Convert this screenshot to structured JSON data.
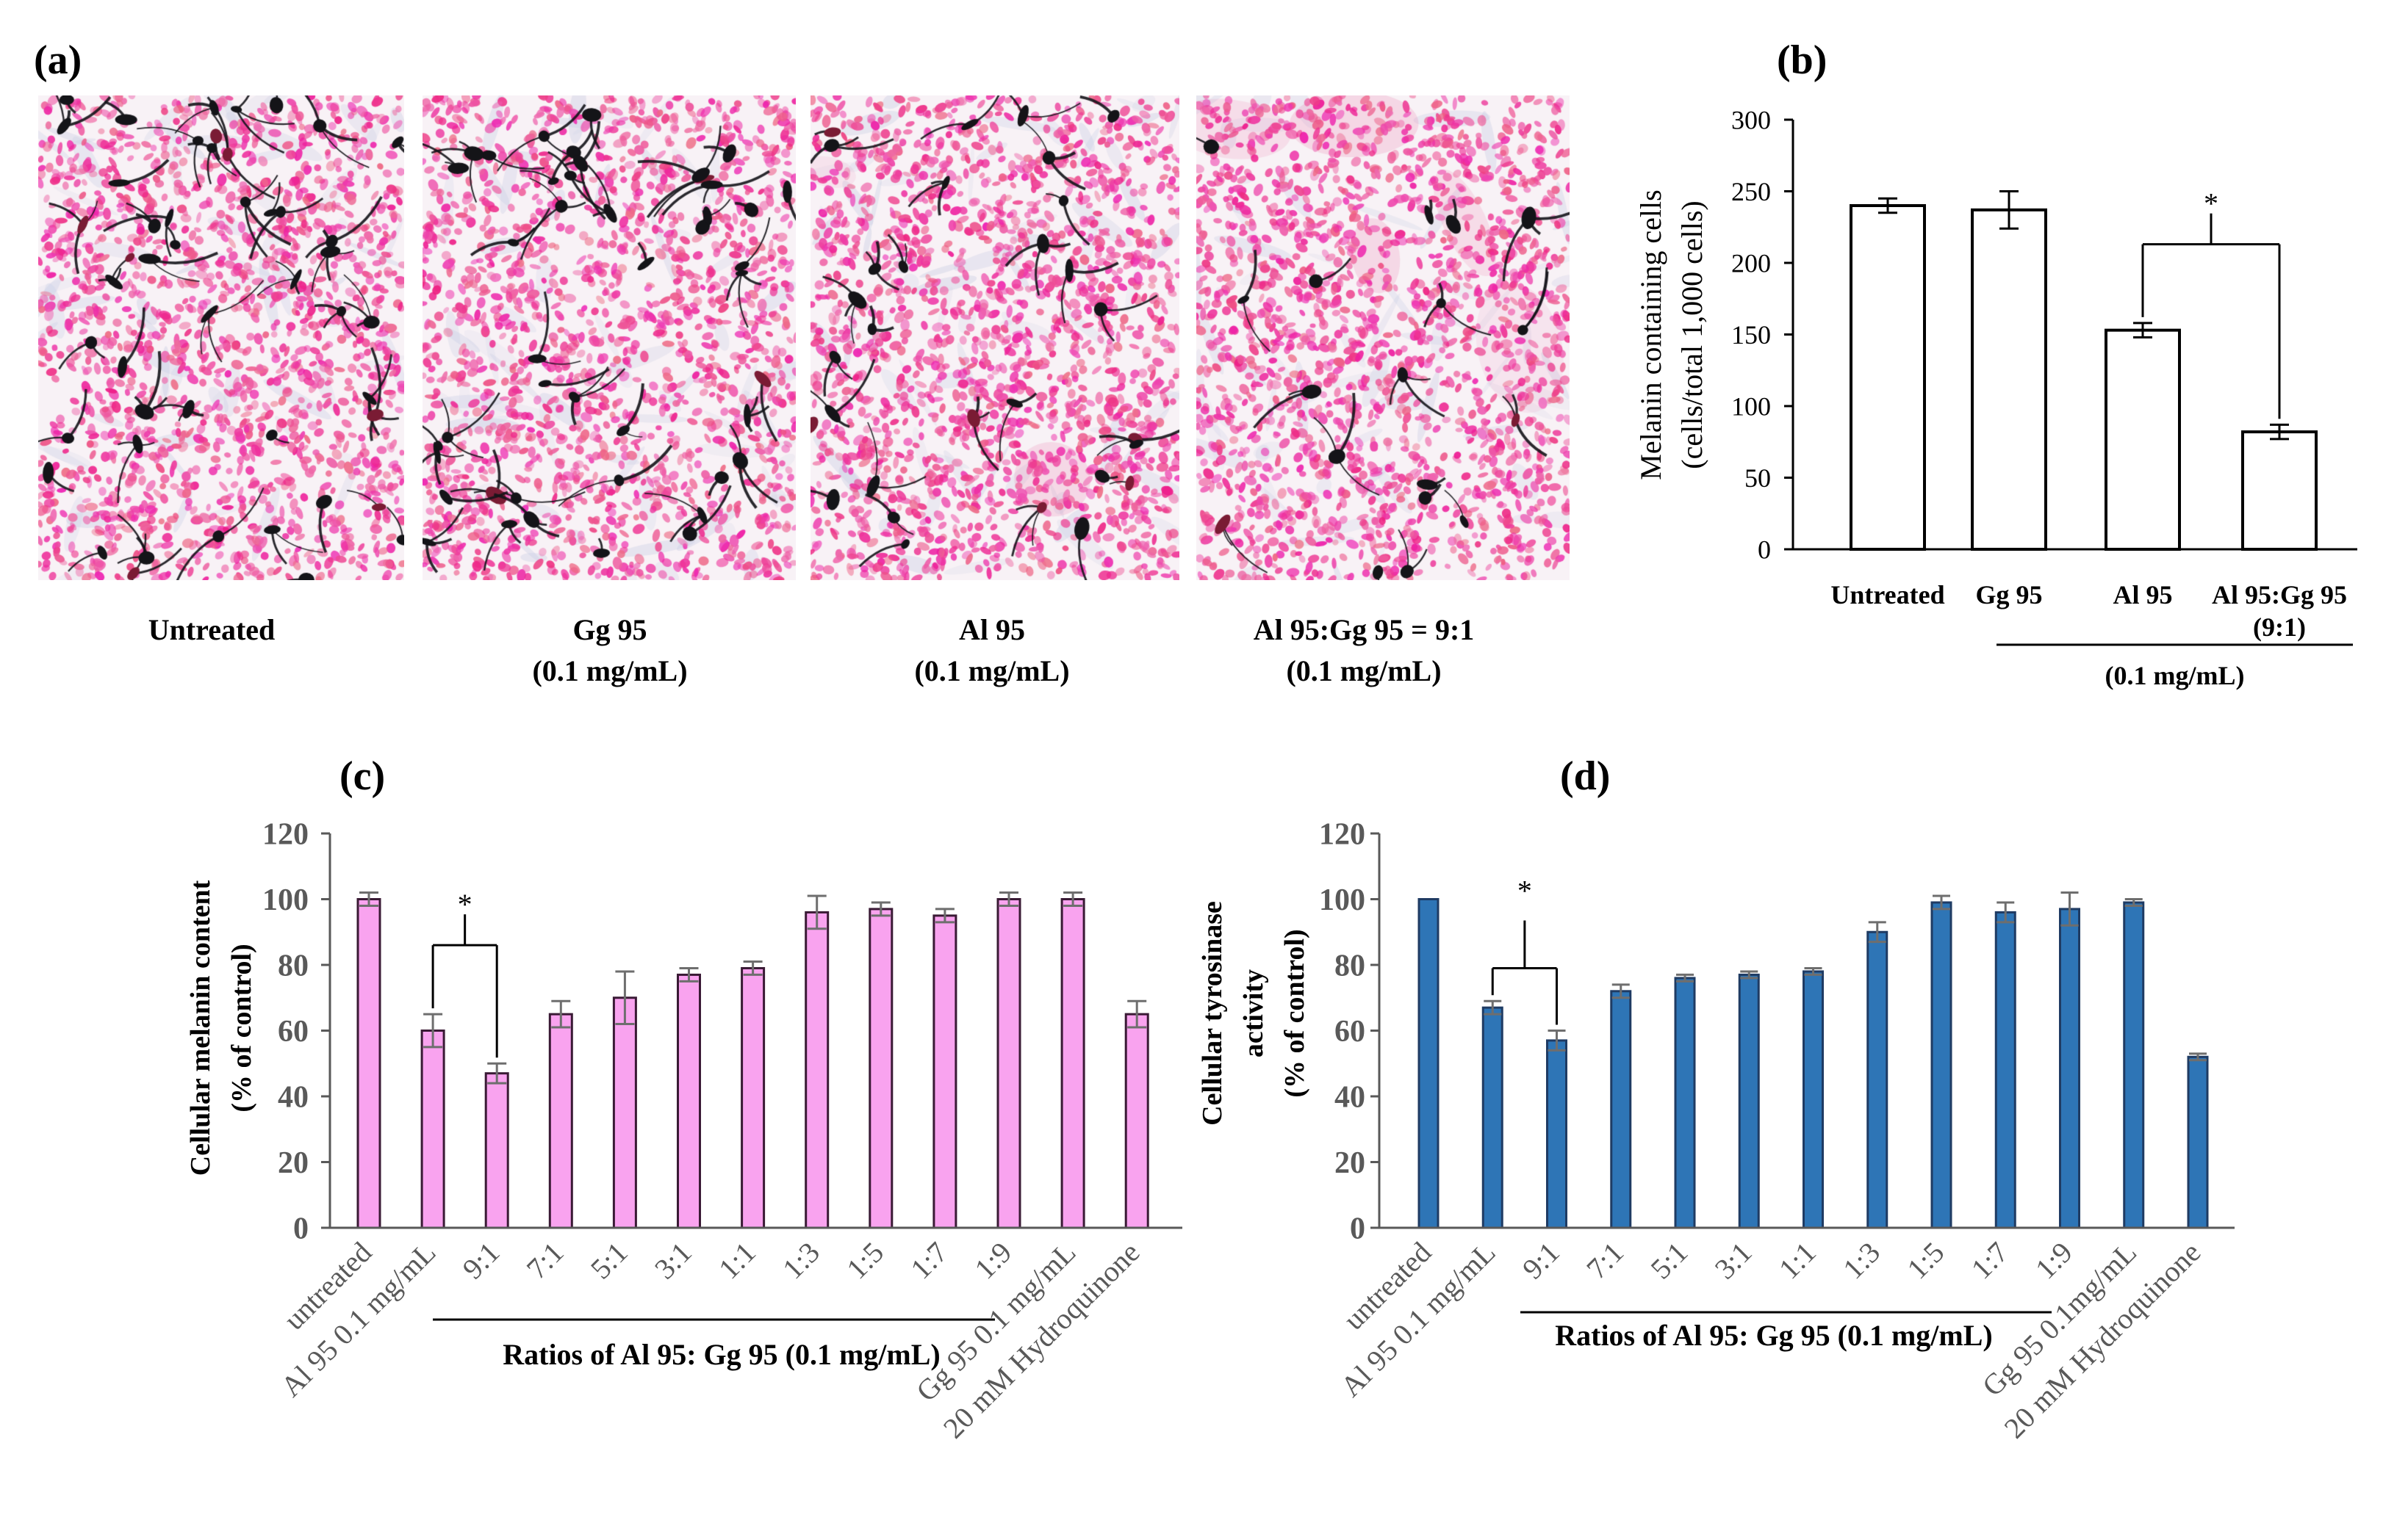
{
  "figure": {
    "panel_a": {
      "label": "(a)",
      "images": [
        {
          "caption": [
            "Untreated"
          ]
        },
        {
          "caption": [
            "Gg 95",
            "(0.1 mg/mL)"
          ]
        },
        {
          "caption": [
            "Al 95",
            "(0.1 mg/mL)"
          ]
        },
        {
          "caption": [
            "Al 95:Gg 95 = 9:1",
            "(0.1 mg/mL)"
          ]
        }
      ]
    }
  },
  "colors": {
    "micrograph_stain": "#ee3f96",
    "melanin_cells": "#141418"
  },
  "chart_data": [
    {
      "panel": "(b)",
      "type": "bar",
      "categories": [
        "Untreated",
        "Gg 95",
        "Al 95",
        "Al 95:Gg 95"
      ],
      "category_sublabels": [
        "",
        "",
        "",
        "(9:1)"
      ],
      "group_label": "(0.1 mg/mL)",
      "values": [
        240,
        237,
        153,
        82
      ],
      "errors": [
        5,
        13,
        5,
        5
      ],
      "ylabel": [
        "Melanin containing cells",
        "(cells/total 1,000 cells)"
      ],
      "ylim": [
        0,
        300
      ],
      "yticks": [
        0,
        50,
        100,
        150,
        200,
        250,
        300
      ],
      "bar_fill": "#ffffff",
      "bar_edge": "#000000",
      "annotations": [
        {
          "text": "*",
          "between": [
            2,
            3
          ]
        }
      ]
    },
    {
      "panel": "(c)",
      "type": "bar",
      "categories": [
        "untreated",
        "Al 95 0.1 mg/mL",
        "9:1",
        "7:1",
        "5:1",
        "3:1",
        "1:1",
        "1:3",
        "1:5",
        "1:7",
        "1:9",
        "Gg 95 0.1 mg/mL",
        "20 mM Hydroquinone"
      ],
      "values": [
        100,
        60,
        47,
        65,
        70,
        77,
        79,
        96,
        97,
        95,
        100,
        100,
        65
      ],
      "errors": [
        2,
        5,
        3,
        4,
        8,
        2,
        2,
        5,
        2,
        2,
        2,
        2,
        4
      ],
      "xlabel": "Ratios of Al 95: Gg 95 (0.1 mg/mL)",
      "ylabel": [
        "Cellular melanin content",
        "(% of control)"
      ],
      "ylim": [
        0,
        120
      ],
      "yticks": [
        0,
        20,
        40,
        60,
        80,
        100,
        120
      ],
      "bar_fill": "#f9a3ef",
      "bar_edge": "#3a1a35",
      "annotations": [
        {
          "text": "*",
          "between": [
            1,
            2
          ]
        }
      ]
    },
    {
      "panel": "(d)",
      "type": "bar",
      "categories": [
        "untreated",
        "Al 95 0.1 mg/mL",
        "9:1",
        "7:1",
        "5:1",
        "3:1",
        "1:1",
        "1:3",
        "1:5",
        "1:7",
        "1:9",
        "Gg 95 0.1mg/mL",
        "20 mM Hydroquinone"
      ],
      "values": [
        100,
        67,
        57,
        72,
        76,
        77,
        78,
        90,
        99,
        96,
        97,
        99,
        52
      ],
      "errors": [
        0,
        2,
        3,
        2,
        1,
        1,
        1,
        3,
        2,
        3,
        5,
        1,
        1
      ],
      "xlabel": "Ratios of Al 95: Gg 95 (0.1 mg/mL)",
      "ylabel": [
        "Cellular tyrosinase",
        "activity",
        "(% of control)"
      ],
      "ylim": [
        0,
        120
      ],
      "yticks": [
        0,
        20,
        40,
        60,
        80,
        100,
        120
      ],
      "bar_fill": "#2e75b6",
      "bar_edge": "#1f3b63",
      "annotations": [
        {
          "text": "*",
          "between": [
            1,
            2
          ]
        }
      ]
    }
  ]
}
